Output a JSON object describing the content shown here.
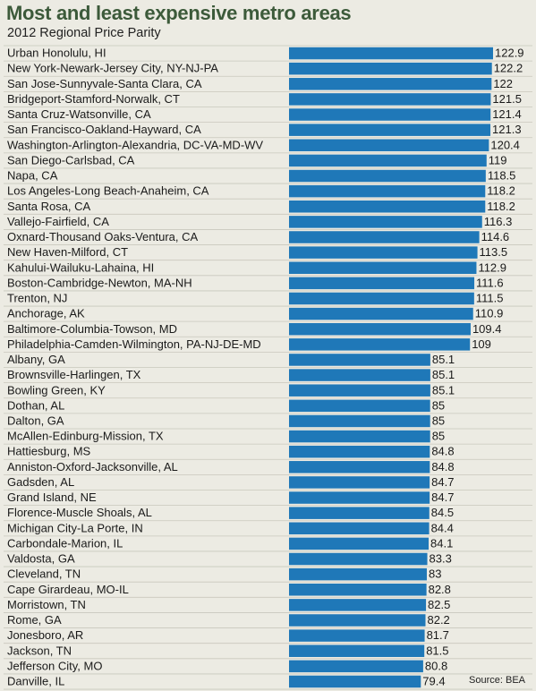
{
  "chart_data": {
    "type": "bar",
    "orientation": "horizontal",
    "title": "Most and least expensive metro areas",
    "subtitle": "2012 Regional Price Parity",
    "source": "Source: BEA",
    "bar_color": "#1f78b8",
    "categories": [
      "Urban Honolulu, HI",
      "New York-Newark-Jersey City, NY-NJ-PA",
      "San Jose-Sunnyvale-Santa Clara, CA",
      "Bridgeport-Stamford-Norwalk, CT",
      "Santa Cruz-Watsonville, CA",
      "San Francisco-Oakland-Hayward, CA",
      "Washington-Arlington-Alexandria, DC-VA-MD-WV",
      "San Diego-Carlsbad, CA",
      "Napa, CA",
      "Los Angeles-Long Beach-Anaheim, CA",
      "Santa Rosa, CA",
      "Vallejo-Fairfield, CA",
      "Oxnard-Thousand Oaks-Ventura, CA",
      "New Haven-Milford, CT",
      "Kahului-Wailuku-Lahaina, HI",
      "Boston-Cambridge-Newton, MA-NH",
      "Trenton, NJ",
      "Anchorage, AK",
      "Baltimore-Columbia-Towson, MD",
      "Philadelphia-Camden-Wilmington, PA-NJ-DE-MD",
      "Albany, GA",
      "Brownsville-Harlingen, TX",
      "Bowling Green, KY",
      "Dothan, AL",
      "Dalton, GA",
      "McAllen-Edinburg-Mission, TX",
      "Hattiesburg, MS",
      "Anniston-Oxford-Jacksonville, AL",
      "Gadsden, AL",
      "Grand Island, NE",
      "Florence-Muscle Shoals, AL",
      "Michigan City-La Porte, IN",
      "Carbondale-Marion, IL",
      "Valdosta, GA",
      "Cleveland, TN",
      "Cape Girardeau, MO-IL",
      "Morristown, TN",
      "Rome, GA",
      "Jonesboro, AR",
      "Jackson, TN",
      "Jefferson City, MO",
      "Danville, IL"
    ],
    "values": [
      122.9,
      122.2,
      122,
      121.5,
      121.4,
      121.3,
      120.4,
      119,
      118.5,
      118.2,
      118.2,
      116.3,
      114.6,
      113.5,
      112.9,
      111.6,
      111.5,
      110.9,
      109.4,
      109,
      85.1,
      85.1,
      85.1,
      85,
      85,
      85,
      84.8,
      84.8,
      84.7,
      84.7,
      84.5,
      84.4,
      84.1,
      83.3,
      83,
      82.8,
      82.5,
      82.2,
      81.7,
      81.5,
      80.8,
      79.4
    ],
    "value_labels": [
      "122.9",
      "122.2",
      "122",
      "121.5",
      "121.4",
      "121.3",
      "120.4",
      "119",
      "118.5",
      "118.2",
      "118.2",
      "116.3",
      "114.6",
      "113.5",
      "112.9",
      "111.6",
      "111.5",
      "110.9",
      "109.4",
      "109",
      "85.1",
      "85.1",
      "85.1",
      "85",
      "85",
      "85",
      "84.8",
      "84.8",
      "84.7",
      "84.7",
      "84.5",
      "84.4",
      "84.1",
      "83.3",
      "83",
      "82.8",
      "82.5",
      "82.2",
      "81.7",
      "81.5",
      "80.8",
      "79.4"
    ],
    "xlim": [
      0,
      122.9
    ],
    "grid": true,
    "legend": "none"
  }
}
